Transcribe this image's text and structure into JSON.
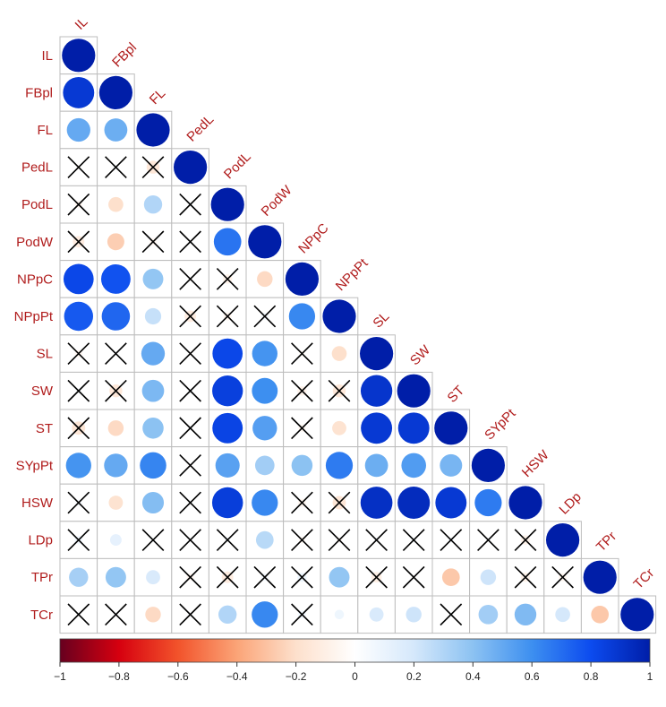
{
  "chart_data": {
    "type": "heatmap",
    "style": "correlation-circle-lower-triangle",
    "variables": [
      "IL",
      "FBpl",
      "FL",
      "PedL",
      "PodL",
      "PodW",
      "NPpC",
      "NPpPt",
      "SL",
      "SW",
      "ST",
      "SYpPt",
      "HSW",
      "LDp",
      "TPr",
      "TCr"
    ],
    "matrix_lower": [
      [
        1.0
      ],
      [
        0.88,
        1.0
      ],
      [
        0.5,
        0.48,
        1.0
      ],
      [
        -0.02,
        0.03,
        -0.15,
        1.0
      ],
      [
        -0.05,
        -0.2,
        0.3,
        0.02,
        1.0
      ],
      [
        -0.12,
        -0.26,
        -0.05,
        0.01,
        0.68,
        1.0
      ],
      [
        0.82,
        0.78,
        0.38,
        -0.02,
        -0.08,
        -0.22,
        1.0
      ],
      [
        0.76,
        0.72,
        0.24,
        -0.12,
        -0.06,
        0.05,
        0.62,
        1.0
      ],
      [
        -0.05,
        0.02,
        0.5,
        -0.02,
        0.82,
        0.58,
        -0.03,
        -0.2,
        1.0
      ],
      [
        0.03,
        -0.15,
        0.44,
        0.02,
        0.85,
        0.6,
        -0.08,
        -0.15,
        0.9,
        1.0
      ],
      [
        -0.16,
        -0.22,
        0.4,
        0.02,
        0.83,
        0.54,
        -0.05,
        -0.18,
        0.88,
        0.88,
        1.0
      ],
      [
        0.58,
        0.5,
        0.63,
        -0.02,
        0.53,
        0.34,
        0.4,
        0.66,
        0.48,
        0.55,
        0.45,
        1.0
      ],
      [
        0.04,
        -0.18,
        0.42,
        0.02,
        0.86,
        0.62,
        -0.06,
        -0.16,
        0.92,
        0.94,
        0.88,
        0.66,
        1.0
      ],
      [
        0.06,
        0.12,
        0.02,
        0.01,
        0.03,
        0.28,
        -0.04,
        -0.03,
        0.02,
        0.03,
        0.03,
        0.02,
        -0.08,
        1.0
      ],
      [
        0.33,
        0.38,
        0.18,
        -0.05,
        -0.12,
        0.05,
        0.08,
        0.38,
        -0.1,
        -0.02,
        -0.28,
        0.22,
        -0.08,
        -0.06,
        1.0
      ],
      [
        0.01,
        0.02,
        -0.22,
        0.02,
        0.3,
        0.62,
        0.06,
        0.08,
        0.18,
        0.22,
        0.02,
        0.34,
        0.43,
        0.2,
        -0.28,
        1.0
      ]
    ],
    "significance_lower": [
      [
        true
      ],
      [
        true,
        true
      ],
      [
        true,
        true,
        true
      ],
      [
        false,
        false,
        false,
        true
      ],
      [
        false,
        true,
        true,
        false,
        true
      ],
      [
        false,
        true,
        false,
        false,
        true,
        true
      ],
      [
        true,
        true,
        true,
        false,
        false,
        true,
        true
      ],
      [
        true,
        true,
        true,
        false,
        false,
        false,
        true,
        true
      ],
      [
        false,
        false,
        true,
        false,
        true,
        true,
        false,
        true,
        true
      ],
      [
        false,
        false,
        true,
        false,
        true,
        true,
        false,
        false,
        true,
        true
      ],
      [
        false,
        true,
        true,
        false,
        true,
        true,
        false,
        true,
        true,
        true,
        true
      ],
      [
        true,
        true,
        true,
        false,
        true,
        true,
        true,
        true,
        true,
        true,
        true,
        true
      ],
      [
        false,
        true,
        true,
        false,
        true,
        true,
        false,
        false,
        true,
        true,
        true,
        true,
        true
      ],
      [
        false,
        true,
        false,
        false,
        false,
        true,
        false,
        false,
        false,
        false,
        false,
        false,
        false,
        true
      ],
      [
        true,
        true,
        true,
        false,
        false,
        false,
        false,
        true,
        false,
        false,
        true,
        true,
        false,
        false,
        true
      ],
      [
        false,
        false,
        true,
        false,
        true,
        true,
        false,
        true,
        true,
        true,
        false,
        true,
        true,
        true,
        true,
        true
      ]
    ],
    "colorbar": {
      "ticks": [
        "−1",
        "−0.8",
        "−0.6",
        "−0.4",
        "−0.2",
        "0",
        "0.2",
        "0.4",
        "0.6",
        "0.8",
        "1"
      ],
      "range": [
        -1,
        1
      ]
    },
    "colors": {
      "label": "#b01c1c",
      "grid": "#bdbdbd",
      "cross": "#000000",
      "scale": [
        "#67001f",
        "#d6000f",
        "#f2532b",
        "#fba477",
        "#fde0cc",
        "#ffffff",
        "#d5e8fb",
        "#8cc2f2",
        "#3d8ff0",
        "#0c4bef",
        "#001ea8"
      ]
    }
  }
}
